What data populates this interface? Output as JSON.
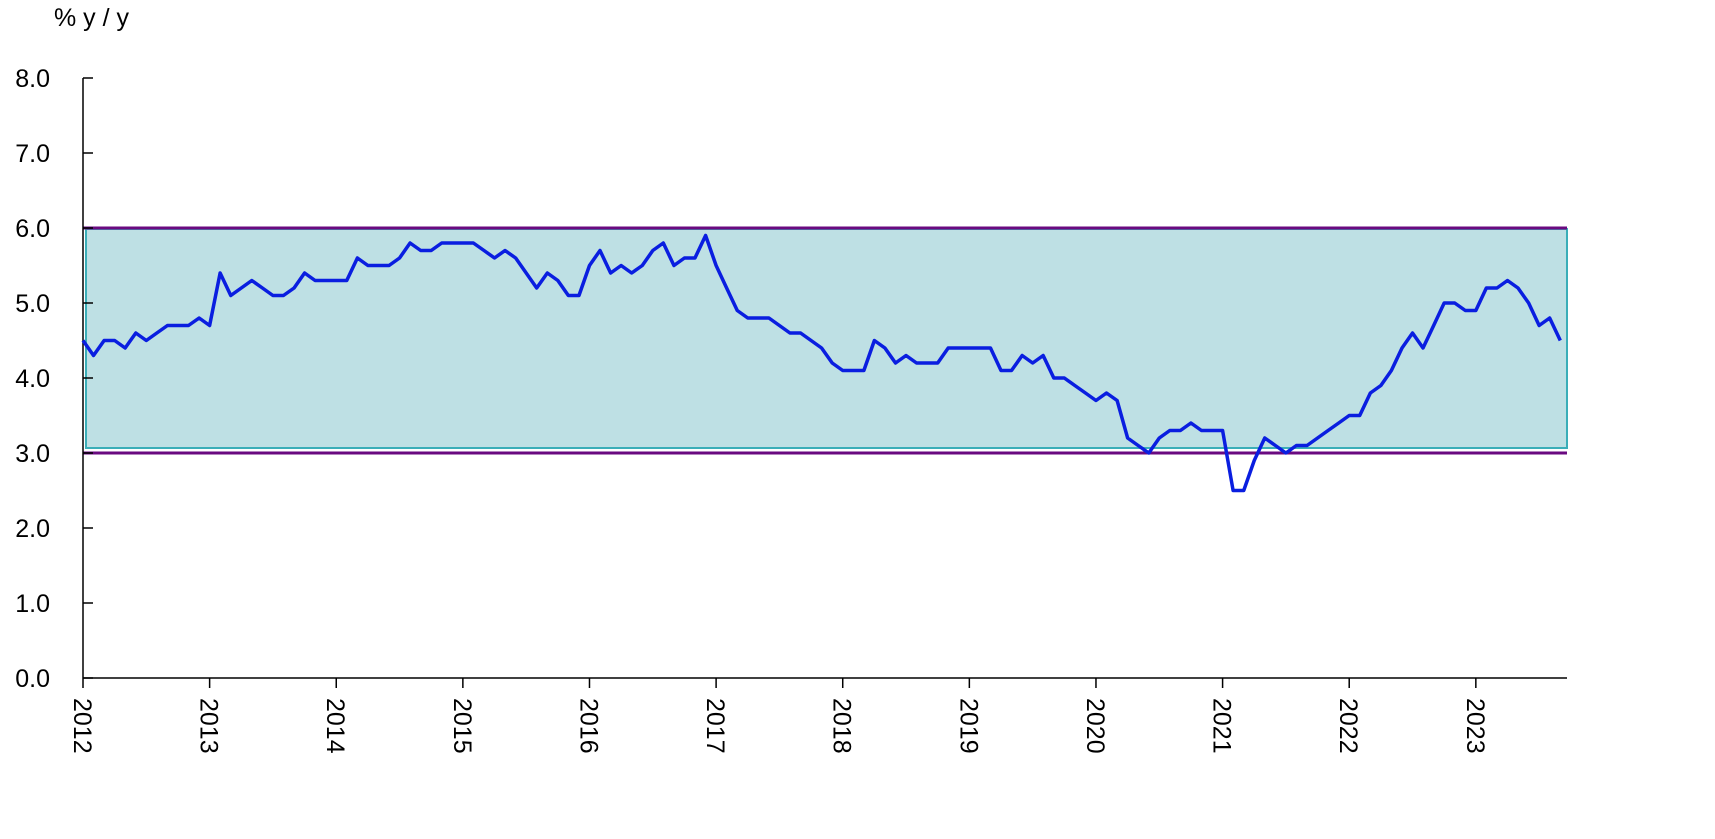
{
  "chart_data": {
    "type": "line",
    "y_label": "%  y / y",
    "x": [
      2012.0,
      2012.083,
      2012.167,
      2012.25,
      2012.333,
      2012.417,
      2012.5,
      2012.583,
      2012.667,
      2012.75,
      2012.833,
      2012.917,
      2013.0,
      2013.083,
      2013.167,
      2013.25,
      2013.333,
      2013.417,
      2013.5,
      2013.583,
      2013.667,
      2013.75,
      2013.833,
      2013.917,
      2014.0,
      2014.083,
      2014.167,
      2014.25,
      2014.333,
      2014.417,
      2014.5,
      2014.583,
      2014.667,
      2014.75,
      2014.833,
      2014.917,
      2015.0,
      2015.083,
      2015.167,
      2015.25,
      2015.333,
      2015.417,
      2015.5,
      2015.583,
      2015.667,
      2015.75,
      2015.833,
      2015.917,
      2016.0,
      2016.083,
      2016.167,
      2016.25,
      2016.333,
      2016.417,
      2016.5,
      2016.583,
      2016.667,
      2016.75,
      2016.833,
      2016.917,
      2017.0,
      2017.083,
      2017.167,
      2017.25,
      2017.333,
      2017.417,
      2017.5,
      2017.583,
      2017.667,
      2017.75,
      2017.833,
      2017.917,
      2018.0,
      2018.083,
      2018.167,
      2018.25,
      2018.333,
      2018.417,
      2018.5,
      2018.583,
      2018.667,
      2018.75,
      2018.833,
      2018.917,
      2019.0,
      2019.083,
      2019.167,
      2019.25,
      2019.333,
      2019.417,
      2019.5,
      2019.583,
      2019.667,
      2019.75,
      2019.833,
      2019.917,
      2020.0,
      2020.083,
      2020.167,
      2020.25,
      2020.333,
      2020.417,
      2020.5,
      2020.583,
      2020.667,
      2020.75,
      2020.833,
      2020.917,
      2021.0,
      2021.083,
      2021.167,
      2021.25,
      2021.333,
      2021.417,
      2021.5,
      2021.583,
      2021.667,
      2021.75,
      2021.833,
      2021.917,
      2022.0,
      2022.083,
      2022.167,
      2022.25,
      2022.333,
      2022.417,
      2022.5,
      2022.583,
      2022.667,
      2022.75,
      2022.833,
      2022.917,
      2023.0,
      2023.083,
      2023.167,
      2023.25,
      2023.333,
      2023.417,
      2023.5,
      2023.583,
      2023.667
    ],
    "series": [
      {
        "color": "#0a1ee0",
        "values": [
          4.5,
          4.3,
          4.5,
          4.5,
          4.4,
          4.6,
          4.5,
          4.6,
          4.7,
          4.7,
          4.7,
          4.8,
          4.7,
          5.4,
          5.1,
          5.2,
          5.3,
          5.2,
          5.1,
          5.1,
          5.2,
          5.4,
          5.3,
          5.3,
          5.3,
          5.3,
          5.6,
          5.5,
          5.5,
          5.5,
          5.6,
          5.8,
          5.7,
          5.7,
          5.8,
          5.8,
          5.8,
          5.8,
          5.7,
          5.6,
          5.7,
          5.6,
          5.4,
          5.2,
          5.4,
          5.3,
          5.1,
          5.1,
          5.5,
          5.7,
          5.4,
          5.5,
          5.4,
          5.5,
          5.7,
          5.8,
          5.5,
          5.6,
          5.6,
          5.9,
          5.5,
          5.2,
          4.9,
          4.8,
          4.8,
          4.8,
          4.7,
          4.6,
          4.6,
          4.5,
          4.4,
          4.2,
          4.1,
          4.1,
          4.1,
          4.5,
          4.4,
          4.2,
          4.3,
          4.2,
          4.2,
          4.2,
          4.4,
          4.4,
          4.4,
          4.4,
          4.4,
          4.1,
          4.1,
          4.3,
          4.2,
          4.3,
          4.0,
          4.0,
          3.9,
          3.8,
          3.7,
          3.8,
          3.7,
          3.2,
          3.1,
          3.0,
          3.2,
          3.3,
          3.3,
          3.4,
          3.3,
          3.3,
          3.3,
          2.5,
          2.5,
          2.9,
          3.2,
          3.1,
          3.0,
          3.1,
          3.1,
          3.2,
          3.3,
          3.4,
          3.5,
          3.5,
          3.8,
          3.9,
          4.1,
          4.4,
          4.6,
          4.4,
          4.7,
          5.0,
          5.0,
          4.9,
          4.9,
          5.2,
          5.2,
          5.3,
          5.2,
          5.0,
          4.7,
          4.8,
          4.5
        ]
      }
    ],
    "target_band": {
      "range": [
        3,
        6
      ],
      "fill": "#bee0e4",
      "stroke": "#3aaeb8"
    },
    "reference_lines": {
      "values": [
        3,
        6
      ],
      "color": "#6a0a80"
    },
    "xlim": [
      2012,
      2023.72
    ],
    "xticks": [
      2012,
      2013,
      2014,
      2015,
      2016,
      2017,
      2018,
      2019,
      2020,
      2021,
      2022,
      2023
    ],
    "ylim": [
      0,
      8
    ],
    "yticks": [
      {
        "value": 0,
        "label": "0.0"
      },
      {
        "value": 1,
        "label": "1.0"
      },
      {
        "value": 2,
        "label": "2.0"
      },
      {
        "value": 3,
        "label": "3.0"
      },
      {
        "value": 4,
        "label": "4.0"
      },
      {
        "value": 5,
        "label": "5.0"
      },
      {
        "value": 6,
        "label": "6.0"
      },
      {
        "value": 7,
        "label": "7.0"
      },
      {
        "value": 8,
        "label": "8.0"
      }
    ]
  }
}
